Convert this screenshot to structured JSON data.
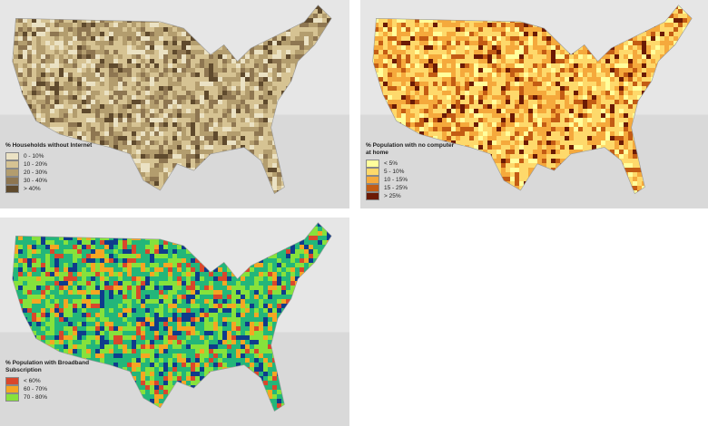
{
  "panels": [
    {
      "legend": {
        "title": "% Households without Internet",
        "items": [
          {
            "label": "0 - 10%",
            "color": "#ebe2c4"
          },
          {
            "label": "10 - 20%",
            "color": "#d6c393"
          },
          {
            "label": "20 - 30%",
            "color": "#b39d6e"
          },
          {
            "label": "30 - 40%",
            "color": "#8e7651"
          },
          {
            "label": "> 40%",
            "color": "#5f4a2d"
          }
        ]
      }
    },
    {
      "legend": {
        "title": "% Population with no computer at home",
        "items": [
          {
            "label": "< 5%",
            "color": "#ffff9c"
          },
          {
            "label": "5 - 10%",
            "color": "#fed96b"
          },
          {
            "label": "10 - 15%",
            "color": "#f5a93c"
          },
          {
            "label": "15 - 25%",
            "color": "#c35c14"
          },
          {
            "label": "> 25%",
            "color": "#6b1a05"
          }
        ]
      }
    },
    {
      "legend": {
        "title": "% Population with Broadband Subscription",
        "items": [
          {
            "label": "< 60%",
            "color": "#d9472c"
          },
          {
            "label": "60 - 70%",
            "color": "#f5a623"
          },
          {
            "label": "70 - 80%",
            "color": "#86e23c"
          }
        ],
        "hidden_colors": [
          "#23b67a",
          "#0f3c8c"
        ]
      }
    }
  ]
}
